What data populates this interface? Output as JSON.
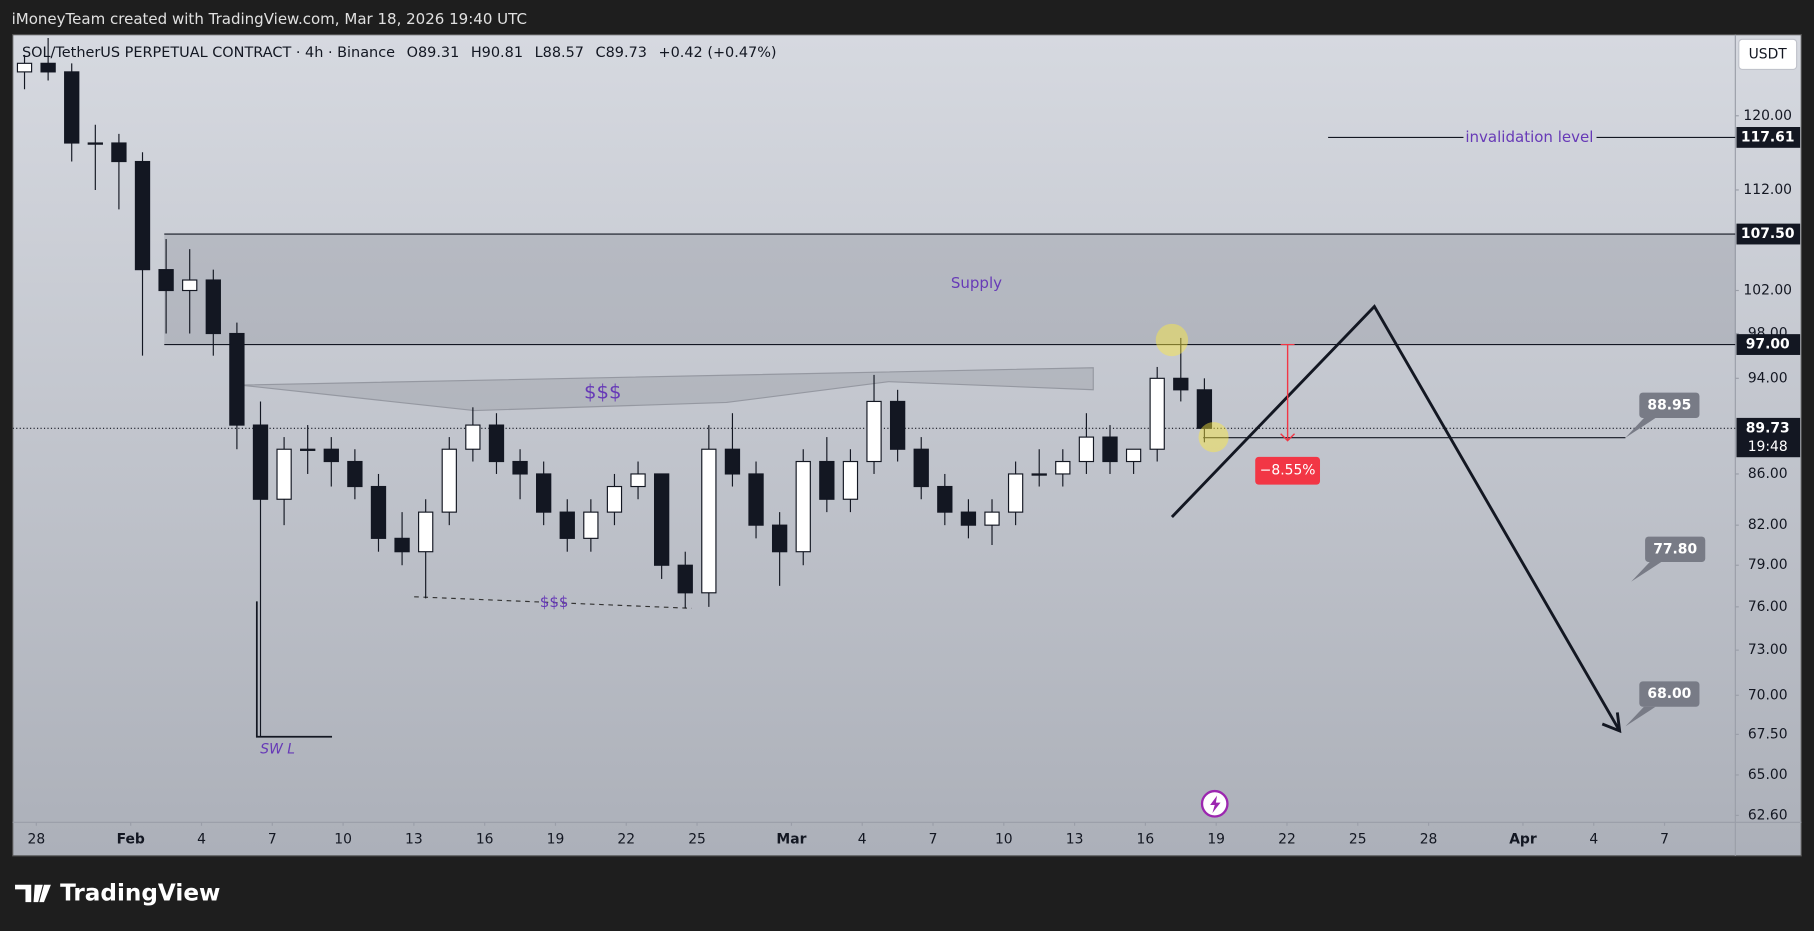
{
  "page_header": "iMoneyTeam created with TradingView.com, Mar 18, 2026 19:40 UTC",
  "chart_data": {
    "type": "candlestick",
    "symbol": "SOL/TetherUS PERPETUAL CONTRACT · 4h · Binance",
    "legend_values": [
      "O89.31",
      "H90.81",
      "L88.57",
      "C89.73",
      "+0.42 (+0.47%)"
    ],
    "currency": "USDT",
    "x": [
      "Jan 27",
      "Jan 28",
      "Jan 29",
      "Jan 30",
      "Jan 31",
      "Feb 1",
      "Feb 2",
      "Feb 3",
      "Feb 4",
      "Feb 5",
      "Feb 6",
      "Feb 7",
      "Feb 8",
      "Feb 9",
      "Feb 10",
      "Feb 11",
      "Feb 12",
      "Feb 13",
      "Feb 14",
      "Feb 15",
      "Feb 16",
      "Feb 17",
      "Feb 18",
      "Feb 19",
      "Feb 20",
      "Feb 21",
      "Feb 22",
      "Feb 23",
      "Feb 24",
      "Feb 25",
      "Feb 26",
      "Feb 27",
      "Feb 28",
      "Mar 1",
      "Mar 2",
      "Mar 3",
      "Mar 4",
      "Mar 5",
      "Mar 6",
      "Mar 7",
      "Mar 8",
      "Mar 9",
      "Mar 10",
      "Mar 11",
      "Mar 12",
      "Mar 13",
      "Mar 14",
      "Mar 15",
      "Mar 16",
      "Mar 17",
      "Mar 18"
    ],
    "open": [
      125,
      126,
      125,
      117,
      117,
      115,
      104,
      102,
      103,
      98,
      90,
      84,
      88,
      88,
      87,
      85,
      81,
      80,
      83,
      88,
      90,
      87,
      86,
      83,
      81,
      83,
      85,
      86,
      79,
      77,
      88,
      86,
      82,
      80,
      87,
      84,
      87,
      92,
      88,
      85,
      83,
      82,
      83,
      86,
      86,
      87,
      89,
      87,
      88,
      94,
      93
    ],
    "high": [
      127,
      129,
      126,
      119,
      118,
      116,
      107,
      106,
      104,
      99,
      92,
      89,
      90,
      89,
      88,
      86,
      83,
      84,
      89,
      91.5,
      91,
      88,
      87,
      84,
      84,
      86,
      87,
      86,
      80,
      90,
      91,
      87,
      83,
      88,
      89,
      88,
      94.3,
      93,
      89,
      86,
      84,
      84,
      87,
      88,
      88,
      91,
      90,
      88,
      95,
      97.6,
      94
    ],
    "low": [
      123,
      124,
      115,
      112,
      110,
      96,
      98,
      98,
      96,
      88,
      67.3,
      82,
      86,
      85,
      84,
      80,
      79,
      76.6,
      82,
      87,
      86,
      84,
      82,
      80,
      80,
      82,
      84,
      78,
      75.9,
      76,
      85,
      81,
      77.5,
      79,
      83,
      83,
      86,
      87,
      84,
      82,
      81,
      80.5,
      82,
      85,
      85,
      86,
      86,
      86,
      87,
      92,
      88.57
    ],
    "close": [
      126,
      125,
      117,
      117,
      115,
      104,
      102,
      103,
      98,
      90,
      84,
      88,
      88,
      87,
      85,
      81,
      80,
      83,
      88,
      90,
      87,
      86,
      83,
      81,
      83,
      85,
      86,
      79,
      77,
      88,
      86,
      82,
      80,
      87,
      84,
      87,
      92,
      88,
      85,
      83,
      82,
      83,
      86,
      86,
      87,
      89,
      87,
      88,
      94,
      93,
      89.73
    ],
    "up_color": "#ffffff",
    "down_color": "#131722",
    "log_scale": true,
    "ylim": [
      62.2,
      129.4
    ],
    "yticks": [
      {
        "value": 62.6,
        "label": "62.60"
      },
      {
        "value": 65,
        "label": "65.00"
      },
      {
        "value": 67.5,
        "label": "67.50"
      },
      {
        "value": 70,
        "label": "70.00"
      },
      {
        "value": 73,
        "label": "73.00"
      },
      {
        "value": 76,
        "label": "76.00"
      },
      {
        "value": 79,
        "label": "79.00"
      },
      {
        "value": 82,
        "label": "82.00"
      },
      {
        "value": 86,
        "label": "86.00"
      },
      {
        "value": 94,
        "label": "94.00"
      },
      {
        "value": 98,
        "label": "98.00"
      },
      {
        "value": 102,
        "label": "102.00"
      },
      {
        "value": 112,
        "label": "112.00"
      },
      {
        "value": 120,
        "label": "120.00"
      }
    ],
    "xlim": [
      "Jan 27",
      "Apr 10"
    ],
    "xticks": [
      {
        "value": "Jan 28",
        "label": "28"
      },
      {
        "value": "Feb 1",
        "label": "Feb"
      },
      {
        "value": "Feb 4",
        "label": "4"
      },
      {
        "value": "Feb 7",
        "label": "7"
      },
      {
        "value": "Feb 10",
        "label": "10"
      },
      {
        "value": "Feb 13",
        "label": "13"
      },
      {
        "value": "Feb 16",
        "label": "16"
      },
      {
        "value": "Feb 19",
        "label": "19"
      },
      {
        "value": "Feb 22",
        "label": "22"
      },
      {
        "value": "Feb 25",
        "label": "25"
      },
      {
        "value": "Mar 1",
        "label": "Mar"
      },
      {
        "value": "Mar 4",
        "label": "4"
      },
      {
        "value": "Mar 7",
        "label": "7"
      },
      {
        "value": "Mar 10",
        "label": "10"
      },
      {
        "value": "Mar 13",
        "label": "13"
      },
      {
        "value": "Mar 16",
        "label": "16"
      },
      {
        "value": "Mar 19",
        "label": "19"
      },
      {
        "value": "Mar 22",
        "label": "22"
      },
      {
        "value": "Mar 25",
        "label": "25"
      },
      {
        "value": "Mar 28",
        "label": "28"
      },
      {
        "value": "Apr 1",
        "label": "Apr"
      },
      {
        "value": "Apr 4",
        "label": "4"
      },
      {
        "value": "Apr 7",
        "label": "7"
      }
    ],
    "annotations": {
      "invalidation": {
        "text": "invalidation level",
        "price": {
          "value": 117.61,
          "label": "117.61"
        }
      },
      "supply": {
        "text": "Supply",
        "high": {
          "value": 107.5,
          "label": "107.50"
        },
        "low": {
          "value": 97,
          "label": "97.00"
        }
      },
      "last_price": {
        "value": 89.73,
        "label": "89.73"
      },
      "countdown": "19:48",
      "targets": [
        {
          "value": 88.95,
          "label": "88.95"
        },
        {
          "value": 77.8,
          "label": "77.80"
        },
        {
          "value": 68,
          "label": "68.00"
        }
      ],
      "drop": {
        "value": -8.55,
        "label": "−8.55%"
      },
      "liquidity": [
        "$$$",
        "$$$"
      ],
      "swing_low": "SW L"
    }
  },
  "footer": {
    "brand": "TradingView"
  }
}
